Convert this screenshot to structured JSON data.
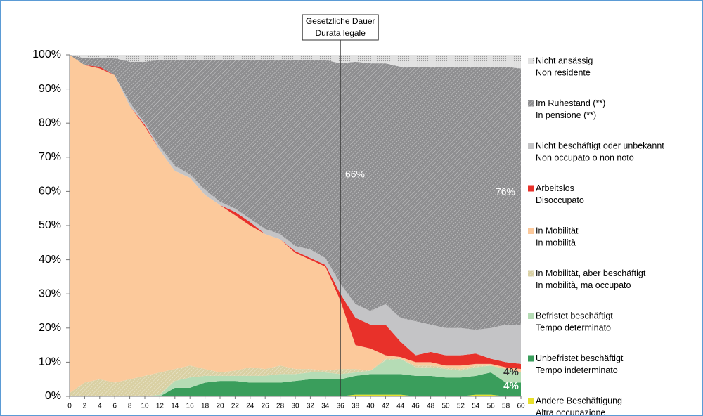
{
  "chart_data": {
    "type": "stacked_area",
    "x": [
      0,
      2,
      4,
      6,
      8,
      10,
      12,
      14,
      16,
      18,
      20,
      22,
      24,
      26,
      28,
      30,
      32,
      34,
      36,
      38,
      40,
      42,
      44,
      46,
      48,
      50,
      52,
      54,
      56,
      58,
      60
    ],
    "xlim": [
      0,
      60
    ],
    "xticks": [
      0,
      2,
      4,
      6,
      8,
      10,
      12,
      14,
      16,
      18,
      20,
      22,
      24,
      26,
      28,
      30,
      32,
      34,
      36,
      38,
      40,
      42,
      44,
      46,
      48,
      50,
      52,
      54,
      56,
      58,
      60
    ],
    "ylim": [
      0,
      100
    ],
    "yticks": [
      {
        "value": 0,
        "label": "0%"
      },
      {
        "value": 10,
        "label": "10%"
      },
      {
        "value": 20,
        "label": "20%"
      },
      {
        "value": 30,
        "label": "30%"
      },
      {
        "value": 40,
        "label": "40%"
      },
      {
        "value": 50,
        "label": "50%"
      },
      {
        "value": 60,
        "label": "60%"
      },
      {
        "value": 70,
        "label": "70%"
      },
      {
        "value": 80,
        "label": "80%"
      },
      {
        "value": 90,
        "label": "90%"
      },
      {
        "value": 100,
        "label": "100%"
      }
    ],
    "series": [
      {
        "name": "Andere Beschäftigung",
        "name_it": "Altra occupazione",
        "color": "#e8e02a",
        "pattern": "solid",
        "values": [
          0,
          0,
          0,
          0,
          0,
          0,
          0,
          0,
          0,
          0,
          0,
          0,
          0,
          0,
          0,
          0,
          0,
          0,
          0,
          0.5,
          0.5,
          0.5,
          0.5,
          0,
          0,
          0,
          0,
          0.5,
          0.5,
          0,
          0
        ]
      },
      {
        "name": "Unbefristet beschäftigt",
        "name_it": "Tempo indeterminato",
        "color": "#3a9e5c",
        "pattern": "solid",
        "values": [
          0,
          0,
          0,
          0,
          0,
          0,
          0,
          2.5,
          2.5,
          4,
          4.5,
          4.5,
          4,
          4,
          4,
          4.5,
          5,
          5,
          5,
          5.5,
          6,
          6,
          6,
          6,
          6,
          5.5,
          5.5,
          5.5,
          6.5,
          4,
          4
        ]
      },
      {
        "name": "Befristet beschäftigt",
        "name_it": "Tempo determinato",
        "color": "#b5dcb5",
        "pattern": "solid",
        "values": [
          0,
          0,
          0,
          0,
          0,
          0,
          0.5,
          2,
          3,
          2,
          1.5,
          1.5,
          2,
          2,
          2.5,
          2,
          2,
          2,
          1.5,
          1,
          1,
          4,
          4.5,
          2.5,
          2.5,
          2.5,
          2,
          2.5,
          2,
          4,
          3
        ]
      },
      {
        "name": "In Mobilität, aber beschäftigt",
        "name_it": "In mobilità, ma occupato",
        "color": "#d9d0a3",
        "pattern": "hatch",
        "values": [
          1,
          4,
          5,
          4,
          5,
          6,
          6.5,
          3.5,
          3.5,
          2,
          1,
          1.5,
          2.5,
          2,
          2.5,
          1.5,
          1,
          0.5,
          1.5,
          1,
          0,
          0.5,
          0,
          0.5,
          0.5,
          0.5,
          0.5,
          0.5,
          0,
          0,
          0
        ]
      },
      {
        "name": "In Mobilität",
        "name_it": "In mobilità",
        "color": "#fcc99b",
        "pattern": "solid",
        "values": [
          99,
          93,
          91,
          90,
          80,
          73,
          65,
          58,
          55,
          51,
          49,
          45.5,
          41.5,
          39.5,
          37,
          34,
          32,
          30.5,
          20,
          7,
          6.5,
          1,
          0.5,
          1,
          1,
          0.5,
          1,
          0.5,
          0.5,
          0.5,
          1
        ]
      },
      {
        "name": "Arbeitslos",
        "name_it": "Disoccupato",
        "color": "#e8312a",
        "pattern": "solid",
        "values": [
          0,
          0,
          0.5,
          0,
          0,
          0.5,
          0,
          0,
          0,
          0,
          0,
          1,
          1,
          0,
          0,
          0.5,
          0.5,
          0.5,
          2,
          8,
          7,
          9,
          4.5,
          2,
          3,
          3,
          3,
          3,
          1.5,
          1.5,
          1.5
        ]
      },
      {
        "name": "Nicht beschäftigt oder unbekannt",
        "name_it": "Non occupato o non noto",
        "color": "#c4c4c6",
        "pattern": "solid",
        "values": [
          0,
          0,
          0,
          0,
          1,
          0.5,
          1,
          1.5,
          1,
          1.5,
          1,
          1,
          1,
          1.5,
          1.5,
          1.5,
          2.5,
          2,
          3,
          4,
          4,
          6,
          7,
          10,
          8,
          8,
          8,
          7,
          9,
          11,
          11.5
        ]
      },
      {
        "name": "Im Ruhestand (**)",
        "name_it": "In pensione (**)",
        "color": "#8e8e90",
        "pattern": "hatch",
        "values": [
          0,
          2,
          2.5,
          5,
          12,
          18,
          25.5,
          31,
          33.5,
          38,
          41.5,
          43.5,
          46.5,
          49.5,
          51,
          54.5,
          55.5,
          58,
          64.5,
          71,
          72.5,
          70.5,
          73.5,
          74.5,
          75.5,
          76.5,
          76.5,
          77,
          76.5,
          75.5,
          75
        ]
      },
      {
        "name": "Nicht ansässig",
        "name_it": "Non residente",
        "color": "#e2e2e2",
        "pattern": "dots",
        "values": [
          0,
          1,
          1,
          1,
          2,
          2,
          1.5,
          1.5,
          1.5,
          1.5,
          1.5,
          1.5,
          1.5,
          1.5,
          1.5,
          1.5,
          1.5,
          1.5,
          2.5,
          2,
          2.5,
          2.5,
          3.5,
          3.5,
          3.5,
          3.5,
          3.5,
          3.5,
          3.5,
          3.5,
          4
        ]
      }
    ],
    "reference_line": {
      "x": 36,
      "label": [
        "Gesetzliche Dauer",
        "Durata legale"
      ]
    },
    "annotations": [
      {
        "text": "66%",
        "color": "#ffffff"
      },
      {
        "text": "76%",
        "color": "#ffffff"
      },
      {
        "text": "4%",
        "color": "#333333"
      },
      {
        "text": "4%",
        "color": "#ffffff"
      }
    ]
  }
}
